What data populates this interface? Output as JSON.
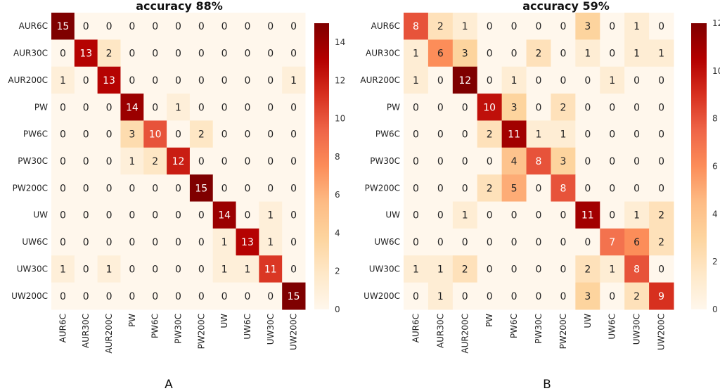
{
  "chart_data": [
    {
      "type": "heatmap",
      "panel_label": "A",
      "title": "accuracy 88%",
      "row_labels": [
        "AUR6C",
        "AUR30C",
        "AUR200C",
        "PW",
        "PW6C",
        "PW30C",
        "PW200C",
        "UW",
        "UW6C",
        "UW30C",
        "UW200C"
      ],
      "col_labels": [
        "AUR6C",
        "AUR30C",
        "AUR200C",
        "PW",
        "PW6C",
        "PW30C",
        "PW200C",
        "UW",
        "UW6C",
        "UW30C",
        "UW200C"
      ],
      "values": [
        [
          15,
          0,
          0,
          0,
          0,
          0,
          0,
          0,
          0,
          0,
          0
        ],
        [
          0,
          13,
          2,
          0,
          0,
          0,
          0,
          0,
          0,
          0,
          0
        ],
        [
          1,
          0,
          13,
          0,
          0,
          0,
          0,
          0,
          0,
          0,
          1
        ],
        [
          0,
          0,
          0,
          14,
          0,
          1,
          0,
          0,
          0,
          0,
          0
        ],
        [
          0,
          0,
          0,
          3,
          10,
          0,
          2,
          0,
          0,
          0,
          0
        ],
        [
          0,
          0,
          0,
          1,
          2,
          12,
          0,
          0,
          0,
          0,
          0
        ],
        [
          0,
          0,
          0,
          0,
          0,
          0,
          15,
          0,
          0,
          0,
          0
        ],
        [
          0,
          0,
          0,
          0,
          0,
          0,
          0,
          14,
          0,
          1,
          0
        ],
        [
          0,
          0,
          0,
          0,
          0,
          0,
          0,
          1,
          13,
          1,
          0
        ],
        [
          1,
          0,
          1,
          0,
          0,
          0,
          0,
          1,
          1,
          11,
          0
        ],
        [
          0,
          0,
          0,
          0,
          0,
          0,
          0,
          0,
          0,
          0,
          15
        ]
      ],
      "colorbar": {
        "range": [
          0,
          15
        ],
        "ticks": [
          "0",
          "2",
          "4",
          "6",
          "8",
          "10",
          "12",
          "14"
        ],
        "colormap": "OrRd"
      }
    },
    {
      "type": "heatmap",
      "panel_label": "B",
      "title": "accuracy 59%",
      "row_labels": [
        "AUR6C",
        "AUR30C",
        "AUR200C",
        "PW",
        "PW6C",
        "PW30C",
        "PW200C",
        "UW",
        "UW6C",
        "UW30C",
        "UW200C"
      ],
      "col_labels": [
        "AUR6C",
        "AUR30C",
        "AUR200C",
        "PW",
        "PW6C",
        "PW30C",
        "PW200C",
        "UW",
        "UW6C",
        "UW30C",
        "UW200C"
      ],
      "values": [
        [
          8,
          2,
          1,
          0,
          0,
          0,
          0,
          3,
          0,
          1,
          0
        ],
        [
          1,
          6,
          3,
          0,
          0,
          2,
          0,
          1,
          0,
          1,
          1
        ],
        [
          1,
          0,
          12,
          0,
          1,
          0,
          0,
          0,
          1,
          0,
          0
        ],
        [
          0,
          0,
          0,
          10,
          3,
          0,
          2,
          0,
          0,
          0,
          0
        ],
        [
          0,
          0,
          0,
          2,
          11,
          1,
          1,
          0,
          0,
          0,
          0
        ],
        [
          0,
          0,
          0,
          0,
          4,
          8,
          3,
          0,
          0,
          0,
          0
        ],
        [
          0,
          0,
          0,
          2,
          5,
          0,
          8,
          0,
          0,
          0,
          0
        ],
        [
          0,
          0,
          1,
          0,
          0,
          0,
          0,
          11,
          0,
          1,
          2
        ],
        [
          0,
          0,
          0,
          0,
          0,
          0,
          0,
          0,
          7,
          6,
          2
        ],
        [
          1,
          1,
          2,
          0,
          0,
          0,
          0,
          2,
          1,
          8,
          0
        ],
        [
          0,
          1,
          0,
          0,
          0,
          0,
          0,
          3,
          0,
          2,
          9
        ]
      ],
      "colorbar": {
        "range": [
          0,
          12
        ],
        "ticks": [
          "0",
          "2",
          "4",
          "6",
          "8",
          "10",
          "12"
        ],
        "colormap": "OrRd"
      }
    }
  ]
}
